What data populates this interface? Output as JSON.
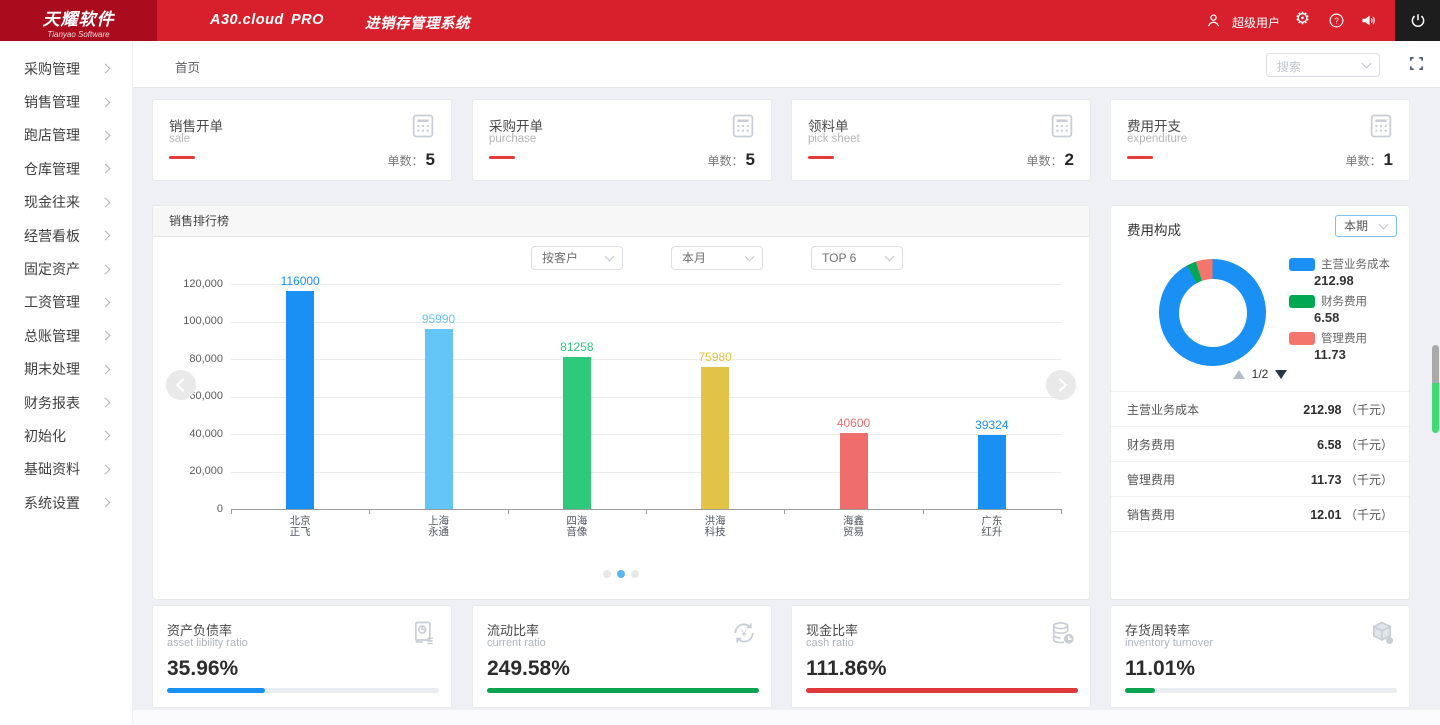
{
  "header": {
    "logo_title": "天耀软件",
    "logo_subtitle": "Tianyao Software",
    "product": "A30.cloud",
    "edition": "PRO",
    "system_name": "进销存管理系统",
    "username": "超级用户"
  },
  "sidebar": {
    "items": [
      "采购管理",
      "销售管理",
      "跑店管理",
      "仓库管理",
      "现金往来",
      "经营看板",
      "固定资产",
      "工资管理",
      "总账管理",
      "期末处理",
      "财务报表",
      "初始化",
      "基础资料",
      "系统设置"
    ]
  },
  "topbar": {
    "breadcrumb": "首页",
    "search_placeholder": "搜索"
  },
  "stat_cards": [
    {
      "title": "销售开单",
      "subtitle": "sale",
      "count_label": "单数：",
      "count": "5"
    },
    {
      "title": "采购开单",
      "subtitle": "purchase",
      "count_label": "单数：",
      "count": "5"
    },
    {
      "title": "领料单",
      "subtitle": "pick sheet",
      "count_label": "单数：",
      "count": "2"
    },
    {
      "title": "费用开支",
      "subtitle": "expenditure",
      "count_label": "单数：",
      "count": "1"
    }
  ],
  "sales_panel": {
    "title": "销售排行榜",
    "filters": [
      "按客户",
      "本月",
      "TOP 6"
    ],
    "carousel": {
      "dots": 3,
      "active": 1
    }
  },
  "expense_panel": {
    "title": "费用构成",
    "period": "本期",
    "legend": [
      {
        "label": "主营业务成本",
        "value": "212.98",
        "color": "#1a90f5"
      },
      {
        "label": "财务费用",
        "value": "6.58",
        "color": "#00a853"
      },
      {
        "label": "管理费用",
        "value": "11.73",
        "color": "#f4756b"
      }
    ],
    "pagination": "1/2",
    "rows": [
      {
        "label": "主营业务成本",
        "value": "212.98",
        "unit": "（千元）"
      },
      {
        "label": "财务费用",
        "value": "6.58",
        "unit": "（千元）"
      },
      {
        "label": "管理费用",
        "value": "11.73",
        "unit": "（千元）"
      },
      {
        "label": "销售费用",
        "value": "12.01",
        "unit": "（千元）"
      }
    ]
  },
  "ratio_cards": [
    {
      "title": "资产负债率",
      "subtitle": "asset libility ratio",
      "value": "35.96%",
      "bar_color": "#1a90f5",
      "bar_pct": 36,
      "icon": "report-icon"
    },
    {
      "title": "流动比率",
      "subtitle": "current ratio",
      "value": "249.58%",
      "bar_color": "#0ba350",
      "bar_pct": 100,
      "icon": "refresh-yen-icon"
    },
    {
      "title": "现金比率",
      "subtitle": "cash ratio",
      "value": "111.86%",
      "bar_color": "#e0393b",
      "bar_pct": 100,
      "icon": "coins-icon"
    },
    {
      "title": "存货周转率",
      "subtitle": "inventory turnover",
      "value": "11.01%",
      "bar_color": "#0ba350",
      "bar_pct": 11,
      "icon": "cube-icon"
    }
  ],
  "chart_data": [
    {
      "type": "bar",
      "title": "销售排行榜",
      "categories": [
        "北京正飞",
        "上海永通",
        "四海音像",
        "洪海科技",
        "海鑫贸易",
        "广东红升"
      ],
      "values": [
        116000,
        95990,
        81258,
        75980,
        40600,
        39324
      ],
      "colors": [
        "#1a90f5",
        "#64c5f7",
        "#2fc97c",
        "#e2c347",
        "#ef6d6a",
        "#1a90f5"
      ],
      "xlabel": "",
      "ylabel": "",
      "ylim": [
        0,
        120000
      ],
      "yticks": [
        "120,000",
        "100,000",
        "80,000",
        "60,000",
        "40,000",
        "20,000",
        "0"
      ],
      "grid": true,
      "legend_position": "none"
    },
    {
      "type": "pie",
      "title": "费用构成",
      "labels": [
        "主营业务成本",
        "财务费用",
        "管理费用"
      ],
      "values": [
        212.98,
        6.58,
        11.73
      ],
      "colors": [
        "#1a90f5",
        "#00a853",
        "#f4756b"
      ],
      "donut": true
    }
  ]
}
